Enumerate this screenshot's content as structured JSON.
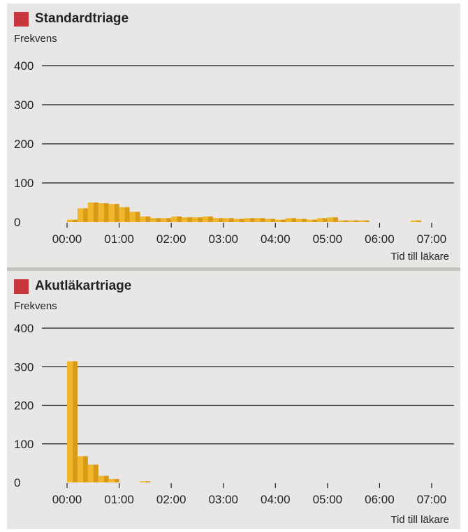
{
  "accent_color": "#c7363c",
  "bar_color": "#f0b72c",
  "bar_shade_color": "#d99a18",
  "chart_data": [
    {
      "type": "bar",
      "title": "Standardtriage",
      "ylabel": "Frekvens",
      "xlabel": "Tid till läkare",
      "ylim": [
        0,
        400
      ],
      "yticks": [
        "400",
        "300",
        "200",
        "100",
        "0"
      ],
      "xtick_labels": [
        "00:00",
        "01:00",
        "02:00",
        "03:00",
        "04:00",
        "05:00",
        "06:00",
        "07:00"
      ],
      "x_unit": "hours",
      "xlim": [
        0,
        7
      ],
      "bin_width_hours": 0.2,
      "bins_start_hours": [
        0.0,
        0.2,
        0.4,
        0.6,
        0.8,
        1.0,
        1.2,
        1.4,
        1.6,
        1.8,
        2.0,
        2.2,
        2.4,
        2.6,
        2.8,
        3.0,
        3.2,
        3.4,
        3.6,
        3.8,
        4.0,
        4.2,
        4.4,
        4.6,
        4.8,
        5.0,
        5.2,
        5.4,
        5.6,
        6.6
      ],
      "values": [
        6,
        35,
        50,
        48,
        46,
        38,
        26,
        14,
        10,
        10,
        14,
        12,
        12,
        14,
        10,
        10,
        8,
        10,
        10,
        8,
        6,
        10,
        8,
        6,
        10,
        12,
        4,
        4,
        4,
        4
      ],
      "grid": true,
      "legend": "none"
    },
    {
      "type": "bar",
      "title": "Akutläkartriage",
      "ylabel": "Frekvens",
      "xlabel": "Tid till läkare",
      "ylim": [
        0,
        400
      ],
      "yticks": [
        "400",
        "300",
        "200",
        "100",
        "0"
      ],
      "xtick_labels": [
        "00:00",
        "01:00",
        "02:00",
        "03:00",
        "04:00",
        "05:00",
        "06:00",
        "07:00"
      ],
      "x_unit": "hours",
      "xlim": [
        0,
        7
      ],
      "bin_width_hours": 0.2,
      "bins_start_hours": [
        0.0,
        0.2,
        0.4,
        0.6,
        0.8,
        1.4
      ],
      "values": [
        314,
        68,
        46,
        17,
        9,
        3
      ],
      "grid": true,
      "legend": "none"
    }
  ]
}
